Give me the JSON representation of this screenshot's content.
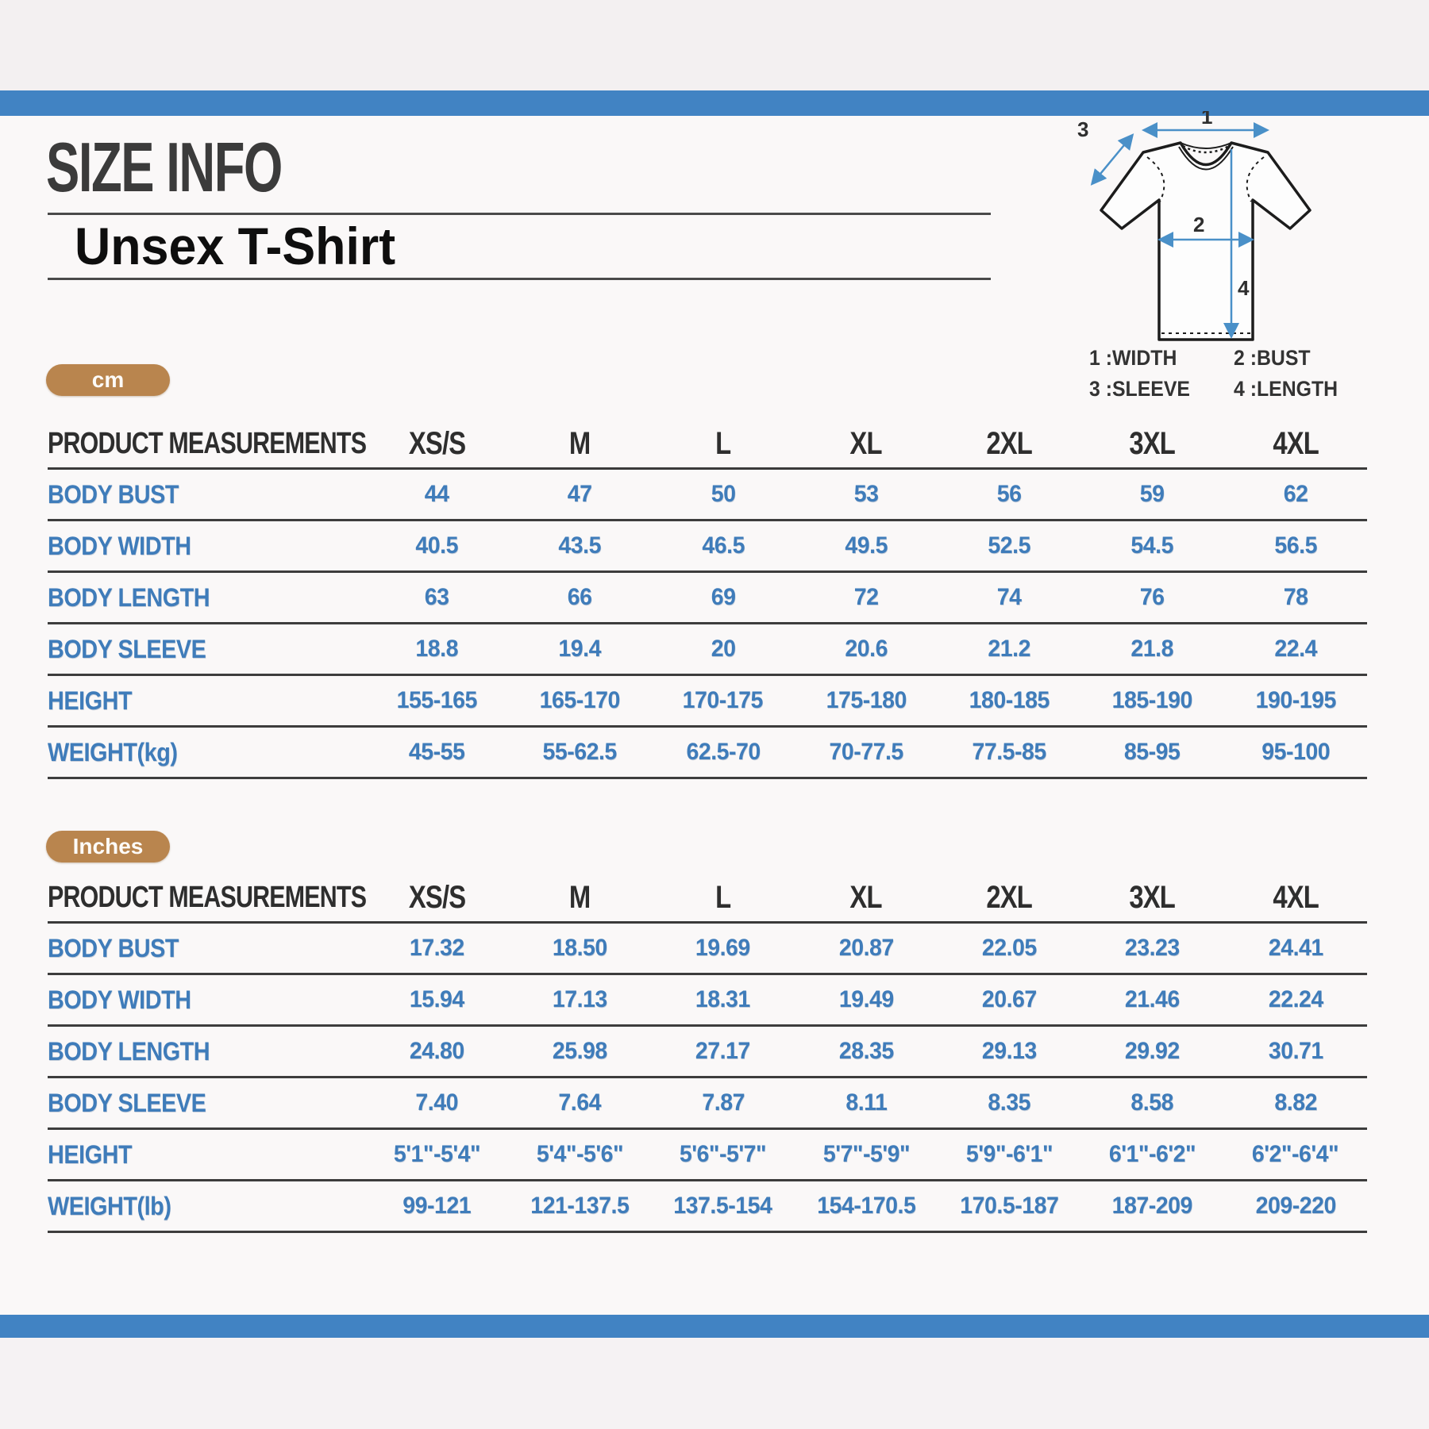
{
  "banner": {
    "title": "SIZE INFO",
    "subtitle": "Unsex T-Shirt"
  },
  "diagram": {
    "arrow_labels": [
      "1",
      "2",
      "3",
      "4"
    ],
    "legend_items": [
      "1 :WIDTH",
      "2 :BUST",
      "3 :SLEEVE",
      "4 :LENGTH"
    ]
  },
  "size_tables": [
    {
      "unit": "cm",
      "first_header": "PRODUCT MEASUREMENTS",
      "sizes": [
        "XS/S",
        "M",
        "L",
        "XL",
        "2XL",
        "3XL",
        "4XL"
      ],
      "rows": [
        {
          "label": "BODY BUST",
          "values": [
            "44",
            "47",
            "50",
            "53",
            "56",
            "59",
            "62"
          ]
        },
        {
          "label": "BODY WIDTH",
          "values": [
            "40.5",
            "43.5",
            "46.5",
            "49.5",
            "52.5",
            "54.5",
            "56.5"
          ]
        },
        {
          "label": "BODY LENGTH",
          "values": [
            "63",
            "66",
            "69",
            "72",
            "74",
            "76",
            "78"
          ]
        },
        {
          "label": "BODY SLEEVE",
          "values": [
            "18.8",
            "19.4",
            "20",
            "20.6",
            "21.2",
            "21.8",
            "22.4"
          ]
        },
        {
          "label": "HEIGHT",
          "values": [
            "155-165",
            "165-170",
            "170-175",
            "175-180",
            "180-185",
            "185-190",
            "190-195"
          ]
        },
        {
          "label": "WEIGHT(kg)",
          "values": [
            "45-55",
            "55-62.5",
            "62.5-70",
            "70-77.5",
            "77.5-85",
            "85-95",
            "95-100"
          ]
        }
      ]
    },
    {
      "unit": "Inches",
      "first_header": "PRODUCT MEASUREMENTS",
      "sizes": [
        "XS/S",
        "M",
        "L",
        "XL",
        "2XL",
        "3XL",
        "4XL"
      ],
      "rows": [
        {
          "label": "BODY BUST",
          "values": [
            "17.32",
            "18.50",
            "19.69",
            "20.87",
            "22.05",
            "23.23",
            "24.41"
          ]
        },
        {
          "label": "BODY WIDTH",
          "values": [
            "15.94",
            "17.13",
            "18.31",
            "19.49",
            "20.67",
            "21.46",
            "22.24"
          ]
        },
        {
          "label": "BODY LENGTH",
          "values": [
            "24.80",
            "25.98",
            "27.17",
            "28.35",
            "29.13",
            "29.92",
            "30.71"
          ]
        },
        {
          "label": "BODY SLEEVE",
          "values": [
            "7.40",
            "7.64",
            "7.87",
            "8.11",
            "8.35",
            "8.58",
            "8.82"
          ]
        },
        {
          "label": "HEIGHT",
          "values": [
            "5'1\"-5'4\"",
            "5'4\"-5'6\"",
            "5'6\"-5'7\"",
            "5'7\"-5'9\"",
            "5'9\"-6'1\"",
            "6'1\"-6'2\"",
            "6'2\"-6'4\""
          ]
        },
        {
          "label": "WEIGHT(lb)",
          "values": [
            "99-121",
            "121-137.5",
            "137.5-154",
            "154-170.5",
            "170.5-187",
            "187-209",
            "209-220"
          ]
        }
      ]
    }
  ],
  "colors": {
    "accent_bar": "#4183c3",
    "badge": "#b9854e",
    "table_text": "#3f7cba",
    "divider": "#3d3d3d",
    "title_text": "#3b3b3b"
  }
}
